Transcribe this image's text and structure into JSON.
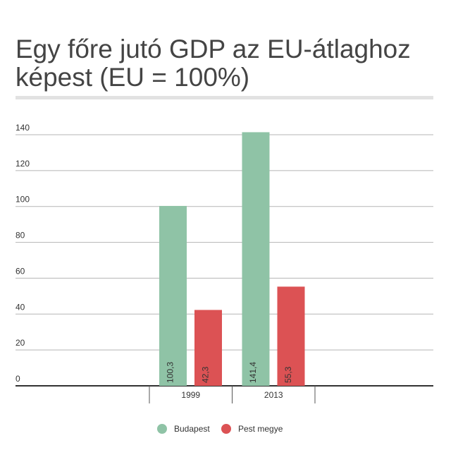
{
  "chart_data": {
    "type": "bar",
    "title_lines": [
      "Egy főre jutó GDP az EU-átlaghoz",
      "képest (EU = 100%)"
    ],
    "categories": [
      "1999",
      "2013"
    ],
    "series": [
      {
        "name": "Budapest",
        "color": "#8fc3a6",
        "values": [
          100.3,
          141.4
        ],
        "value_labels": [
          "100,3",
          "141,4"
        ]
      },
      {
        "name": "Pest megye",
        "color": "#dc5254",
        "values": [
          42.3,
          55.3
        ],
        "value_labels": [
          "42,3",
          "55,3"
        ]
      }
    ],
    "ylim": [
      0,
      140
    ],
    "yticks": [
      0,
      20,
      40,
      60,
      80,
      100,
      120,
      140
    ],
    "grid": true,
    "legend": "bottom"
  }
}
